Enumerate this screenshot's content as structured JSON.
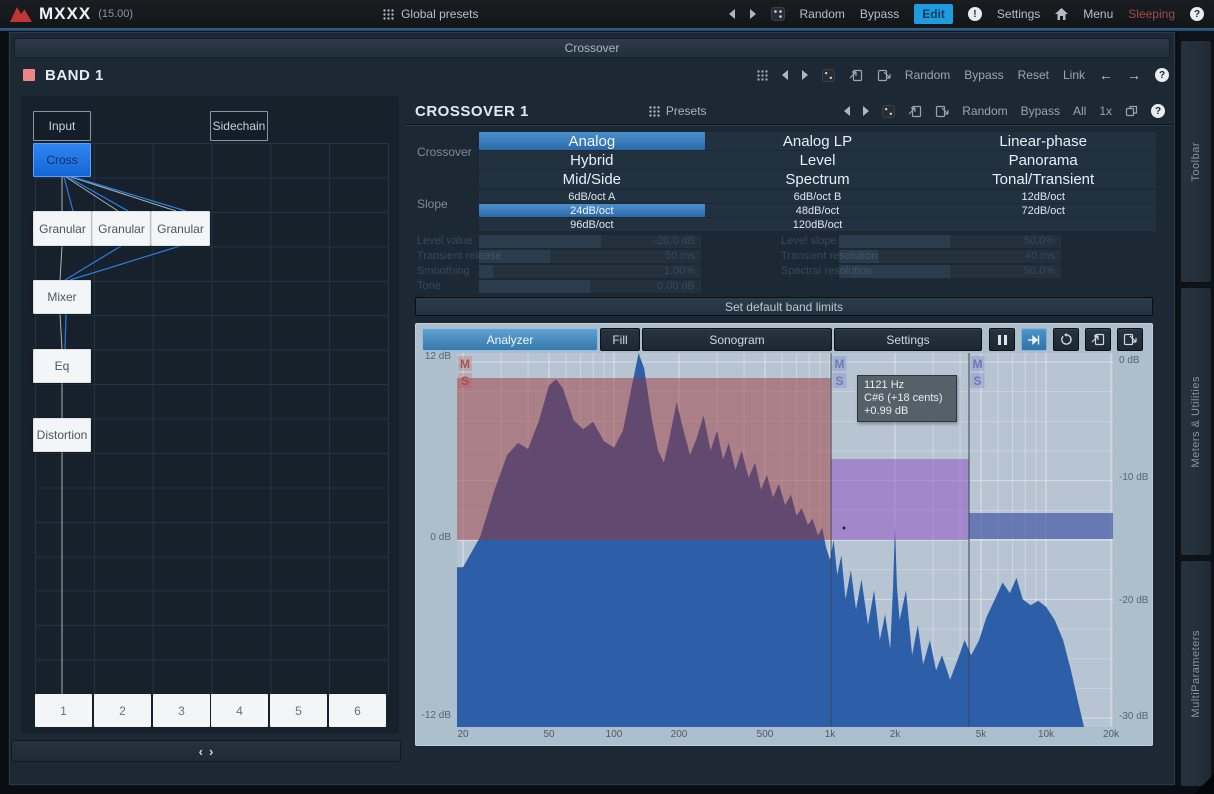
{
  "topbar": {
    "app": "MXXX",
    "version": "(15.00)",
    "global_presets": "Global presets",
    "random": "Random",
    "bypass": "Bypass",
    "edit": "Edit",
    "settings": "Settings",
    "menu": "Menu",
    "sleeping": "Sleeping"
  },
  "window": {
    "title": "Crossover"
  },
  "band": {
    "title": "BAND 1",
    "toolbar": {
      "random": "Random",
      "bypass": "Bypass",
      "reset": "Reset",
      "link": "Link"
    }
  },
  "matrix": {
    "nodes": {
      "input": "Input",
      "sidechain": "Sidechain",
      "cross": "Cross",
      "granular1": "Granular",
      "granular2": "Granular",
      "granular3": "Granular",
      "mixer": "Mixer",
      "eq": "Eq",
      "distortion": "Distortion"
    },
    "slots": [
      "1",
      "2",
      "3",
      "4",
      "5",
      "6"
    ],
    "scroll_left": "‹",
    "scroll_right": "›"
  },
  "crossover_panel": {
    "title": "CROSSOVER 1",
    "presets": "Presets",
    "random": "Random",
    "bypass": "Bypass",
    "all": "All",
    "zoom": "1x",
    "crossover_label": "Crossover",
    "slope_label": "Slope",
    "crossover_rows": [
      [
        "Analog",
        "Analog LP",
        "Linear-phase"
      ],
      [
        "Hybrid",
        "Level",
        "Panorama"
      ],
      [
        "Mid/Side",
        "Spectrum",
        "Tonal/Transient"
      ]
    ],
    "crossover_selected": "Analog",
    "slope_rows": [
      [
        "6dB/oct A",
        "6dB/oct B",
        "12dB/oct"
      ],
      [
        "24dB/oct",
        "48dB/oct",
        "72dB/oct"
      ],
      [
        "96dB/oct",
        "120dB/oct",
        ""
      ]
    ],
    "slope_selected": "24dB/oct",
    "params_left": [
      {
        "label": "Level value",
        "value": "-20.0 dB"
      },
      {
        "label": "Transient release",
        "value": "50 ms"
      },
      {
        "label": "Smoothing",
        "value": "1.00%"
      },
      {
        "label": "Tone",
        "value": "0.00 dB"
      }
    ],
    "params_right": [
      {
        "label": "Level slope",
        "value": "50.0%"
      },
      {
        "label": "Transient resolution",
        "value": "40 ms"
      },
      {
        "label": "Spectral resolution",
        "value": "50.0%"
      }
    ],
    "set_default_button": "Set default band limits"
  },
  "analyzer": {
    "tabs": [
      {
        "label": "Analyzer",
        "selected": true
      },
      {
        "label": "Fill",
        "selected": false
      },
      {
        "label": "Sonogram",
        "selected": false
      },
      {
        "label": "Settings",
        "selected": false
      }
    ],
    "tooltip": {
      "line1": "1121 Hz",
      "line2": "C#6 (+18 cents)",
      "line3": "+0.99 dB"
    },
    "left_axis": [
      "12 dB",
      "0 dB",
      "-12 dB"
    ],
    "right_axis": [
      "0 dB",
      "-10 dB",
      "-20 dB",
      "-30 dB"
    ],
    "freq_axis": [
      "20",
      "50",
      "100",
      "200",
      "500",
      "1k",
      "2k",
      "5k",
      "10k",
      "20k"
    ],
    "ms_markers": [
      "M",
      "S"
    ],
    "crossover_frequencies_hz": [
      1000,
      4500
    ],
    "spectrum": [
      [
        20,
        -1.8
      ],
      [
        24,
        0.2
      ],
      [
        28,
        3.3
      ],
      [
        32,
        5.6
      ],
      [
        36,
        6.4
      ],
      [
        40,
        6.0
      ],
      [
        45,
        7.9
      ],
      [
        50,
        10.2
      ],
      [
        54,
        10.6
      ],
      [
        58,
        10.0
      ],
      [
        65,
        7.9
      ],
      [
        72,
        7.3
      ],
      [
        80,
        7.8
      ],
      [
        90,
        6.5
      ],
      [
        100,
        6.1
      ],
      [
        110,
        7.2
      ],
      [
        120,
        9.9
      ],
      [
        130,
        12.4
      ],
      [
        138,
        11.3
      ],
      [
        150,
        7.9
      ],
      [
        160,
        5.9
      ],
      [
        170,
        5.1
      ],
      [
        180,
        6.6
      ],
      [
        195,
        9.1
      ],
      [
        210,
        7.2
      ],
      [
        225,
        5.6
      ],
      [
        240,
        6.6
      ],
      [
        260,
        8.2
      ],
      [
        280,
        5.9
      ],
      [
        300,
        7.2
      ],
      [
        320,
        5.3
      ],
      [
        340,
        6.4
      ],
      [
        365,
        4.6
      ],
      [
        390,
        5.9
      ],
      [
        420,
        4.1
      ],
      [
        450,
        5.1
      ],
      [
        480,
        3.3
      ],
      [
        510,
        4.3
      ],
      [
        545,
        2.8
      ],
      [
        580,
        3.7
      ],
      [
        620,
        2.3
      ],
      [
        660,
        3.0
      ],
      [
        700,
        1.6
      ],
      [
        740,
        2.1
      ],
      [
        790,
        1.0
      ],
      [
        830,
        1.4
      ],
      [
        880,
        0.3
      ],
      [
        920,
        0.8
      ],
      [
        960,
        -0.5
      ],
      [
        1000,
        -1.3
      ],
      [
        1040,
        0.0
      ],
      [
        1080,
        -2.3
      ],
      [
        1130,
        -1.0
      ],
      [
        1180,
        -3.9
      ],
      [
        1250,
        -2.0
      ],
      [
        1320,
        -4.6
      ],
      [
        1400,
        -2.6
      ],
      [
        1500,
        -5.6
      ],
      [
        1600,
        -3.3
      ],
      [
        1700,
        -6.6
      ],
      [
        1800,
        -4.9
      ],
      [
        1900,
        -7.2
      ],
      [
        1960,
        -3.0
      ],
      [
        2000,
        1.0
      ],
      [
        2040,
        -3.0
      ],
      [
        2100,
        -5.3
      ],
      [
        2250,
        -3.3
      ],
      [
        2400,
        -7.6
      ],
      [
        2550,
        -5.6
      ],
      [
        2700,
        -8.2
      ],
      [
        2900,
        -6.6
      ],
      [
        3100,
        -8.6
      ],
      [
        3300,
        -7.6
      ],
      [
        3600,
        -9.2
      ],
      [
        3900,
        -7.9
      ],
      [
        4200,
        -6.6
      ],
      [
        4500,
        -7.6
      ],
      [
        4900,
        -6.6
      ],
      [
        5300,
        -5.1
      ],
      [
        5800,
        -3.9
      ],
      [
        6300,
        -2.8
      ],
      [
        6800,
        -3.5
      ],
      [
        7300,
        -2.5
      ],
      [
        7800,
        -3.9
      ],
      [
        8500,
        -4.3
      ],
      [
        9200,
        -4.0
      ],
      [
        10000,
        -4.4
      ],
      [
        11000,
        -5.3
      ],
      [
        12000,
        -6.6
      ],
      [
        13000,
        -8.5
      ],
      [
        14000,
        -10.5
      ],
      [
        15000,
        -13
      ],
      [
        16000,
        -16
      ],
      [
        17000,
        -20
      ],
      [
        18000,
        -24
      ],
      [
        20000,
        -25
      ]
    ]
  },
  "sidebar_tabs": [
    "Toolbar",
    "Meters & Utilities",
    "MultiParameters"
  ],
  "colors": {
    "accent_blue": "#1f9ce0",
    "selected_blue": "#3c86cc",
    "band_color": "#ee8585",
    "spectrum_blue": "#2d5fa8",
    "band1_range_red": "#9e3030",
    "band2_range_purple": "#9454c4",
    "band3_range_blue": "#485ca8",
    "analyzer_bg": "#b7c5d3"
  }
}
